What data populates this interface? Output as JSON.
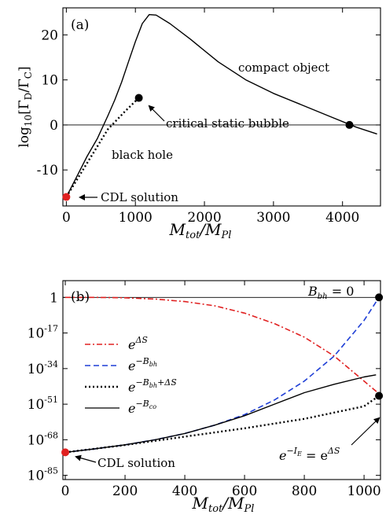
{
  "chart_data": [
    {
      "type": "line",
      "panel_label": "(a)",
      "xlabel": "M_tot/M_Pl",
      "ylabel": "log10[Γ_D/Γ_C]",
      "xlim": [
        -50,
        4550
      ],
      "ylim": [
        -18,
        26
      ],
      "xticks": [
        0,
        1000,
        2000,
        3000,
        4000
      ],
      "xtick_labels": [
        "0",
        "1000",
        "2000",
        "3000",
        "4000"
      ],
      "yticks": [
        -10,
        0,
        10,
        20
      ],
      "ytick_labels": [
        "-10",
        "0",
        "10",
        "20"
      ],
      "reference_line_y": 0,
      "series": [
        {
          "x": [
            0,
            150,
            300,
            450,
            600,
            700,
            800,
            900,
            1000,
            1100,
            1200,
            1300,
            1500,
            1800,
            2200,
            2600,
            3000,
            3400,
            3800,
            4200,
            4500
          ],
          "y": [
            -16,
            -11.5,
            -7,
            -3,
            2,
            5.5,
            9.5,
            14,
            18.5,
            22.5,
            24.5,
            24.4,
            22.5,
            19,
            14,
            10,
            7,
            4.5,
            2,
            -0.5,
            -2
          ],
          "style": "solid",
          "color": "#000000"
        },
        {
          "x": [
            0,
            300,
            600,
            850,
            1050
          ],
          "y": [
            -16,
            -8.5,
            -1,
            3,
            6
          ],
          "style": "dotted",
          "color": "#000000"
        }
      ],
      "points": [
        {
          "name": "cdl-point",
          "x": 0,
          "y": -16,
          "color": "#e02020"
        },
        {
          "name": "critical-bubble-point",
          "x": 1050,
          "y": 6,
          "color": "#000000"
        },
        {
          "name": "zero-crossing-point",
          "x": 4100,
          "y": 0,
          "color": "#000000"
        }
      ],
      "annotations": {
        "compact_object": "compact object",
        "critical_static_bubble": "critical static bubble",
        "black_hole": "black hole",
        "cdl_solution": "CDL solution"
      }
    },
    {
      "type": "line",
      "panel_label": "(b)",
      "xlabel": "M_tot/M_Pl",
      "xlim": [
        -8,
        1055
      ],
      "ylim": [
        -87,
        8
      ],
      "xticks": [
        0,
        200,
        400,
        600,
        800,
        1000
      ],
      "xtick_labels": [
        "0",
        "200",
        "400",
        "600",
        "800",
        "1000"
      ],
      "yticks": [
        -85,
        -68,
        -51,
        -34,
        -17,
        0
      ],
      "ytick_labels": [
        "-85",
        "-68",
        "-51",
        "-34",
        "-17",
        "1"
      ],
      "ytick_label_prefix": "10",
      "reference_line_y": 0,
      "series": [
        {
          "name": "e^{ΔS}",
          "style": "dashdot",
          "color": "#e02020",
          "x": [
            0,
            100,
            200,
            300,
            400,
            500,
            600,
            700,
            800,
            900,
            1000,
            1050
          ],
          "y": [
            0,
            0,
            -0.2,
            -0.8,
            -2,
            -4,
            -7.5,
            -12.5,
            -19,
            -28,
            -40,
            -46
          ]
        },
        {
          "name": "e^{-B_bh}",
          "style": "dashed",
          "color": "#1f3fd6",
          "x": [
            0,
            100,
            200,
            300,
            400,
            500,
            600,
            700,
            800,
            900,
            1000,
            1050
          ],
          "y": [
            -74,
            -72.3,
            -70.4,
            -68,
            -65,
            -61,
            -56,
            -49,
            -40,
            -28,
            -11,
            0
          ]
        },
        {
          "name": "e^{-B_bh+ΔS}",
          "style": "dotted",
          "color": "#000000",
          "x": [
            0,
            200,
            400,
            600,
            800,
            1000,
            1050
          ],
          "y": [
            -74,
            -70.5,
            -66.5,
            -62.5,
            -58,
            -52,
            -47
          ]
        },
        {
          "name": "e^{-B_co}",
          "style": "solid",
          "color": "#000000",
          "x": [
            0,
            100,
            200,
            300,
            400,
            500,
            600,
            700,
            800,
            900,
            1000,
            1040
          ],
          "y": [
            -74,
            -72.3,
            -70.4,
            -68,
            -65,
            -61,
            -56.5,
            -51,
            -45.5,
            -41.5,
            -38,
            -37
          ]
        }
      ],
      "points": [
        {
          "name": "cdl-point",
          "x": 0,
          "y": -74,
          "color": "#e02020"
        },
        {
          "name": "bbh-zero-point",
          "x": 1050,
          "y": 0,
          "color": "#000000"
        },
        {
          "name": "ie-point",
          "x": 1050,
          "y": -47,
          "color": "#000000"
        }
      ],
      "annotations": {
        "bbh_zero_base": "B",
        "bbh_zero_sub": "bh",
        "bbh_zero_rest": " = 0",
        "cdl_solution": "CDL solution",
        "ie_base": "e",
        "ie_exp": "−I",
        "ie_exp_sub": "E",
        "ie_eq": " = e",
        "ie_rhs_exp": "ΔS"
      },
      "legend": {
        "placement": "left",
        "entries": [
          {
            "base": "e",
            "exp": "ΔS",
            "sub": "",
            "exp_rest": ""
          },
          {
            "base": "e",
            "exp": "−B",
            "sub": "bh",
            "exp_rest": ""
          },
          {
            "base": "e",
            "exp": "−B",
            "sub": "bh",
            "exp_rest": "+ΔS"
          },
          {
            "base": "e",
            "exp": "−B",
            "sub": "co",
            "exp_rest": ""
          }
        ]
      }
    }
  ],
  "axis_text": {
    "x_main": "M",
    "x_sub1": "tot",
    "x_slash": "/M",
    "x_sub2": "Pl",
    "y_log": "log",
    "y_log_sub": "10",
    "y_open": "[Γ",
    "y_sub_d": "D",
    "y_mid": "/Γ",
    "y_sub_c": "C",
    "y_close": "]"
  }
}
